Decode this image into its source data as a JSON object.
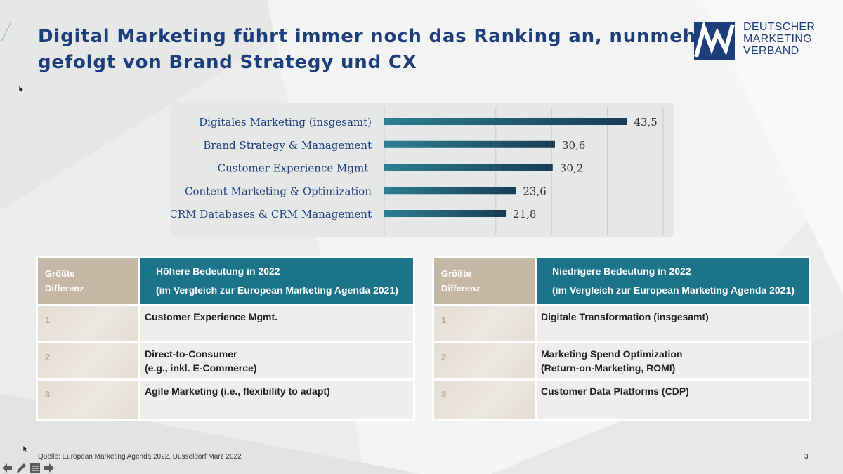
{
  "slide": {
    "title_line1": "Digital Marketing führt immer noch das Ranking an, nunmehr",
    "title_line2": "gefolgt von Brand Strategy und CX",
    "logo": {
      "line1": "DEUTSCHER",
      "line2": "MARKETING",
      "line3": "VERBAND",
      "color": "#1c3f7c"
    },
    "footer": "Quelle: European Marketing Agenda 2022, Düsseldorf März 2022",
    "page_number": "3"
  },
  "chart_data": {
    "type": "bar",
    "orientation": "horizontal",
    "categories": [
      "Digitales Marketing (insgesamt)",
      "Brand Strategy & Management",
      "Customer Experience Mgmt.",
      "Content Marketing & Optimization",
      "CRM Databases & CRM Management"
    ],
    "values": [
      43.5,
      30.6,
      30.2,
      23.6,
      21.8
    ],
    "value_labels": [
      "43,5",
      "30,6",
      "30,2",
      "23,6",
      "21,8"
    ],
    "xlim": [
      0,
      50
    ],
    "grid": true,
    "bar_color_start": "#2c7f93",
    "bar_color_end": "#173d55"
  },
  "table_left": {
    "header_a": "Größte Differenz",
    "header_b_line1": "Höhere Bedeutung in 2022",
    "header_b_line2": "(im Vergleich zur European Marketing Agenda 2021)",
    "rows": [
      {
        "num": "1",
        "line1": "Customer Experience Mgmt.",
        "line2": ""
      },
      {
        "num": "2",
        "line1": "Direct-to-Consumer",
        "line2": "(e.g., inkl. E-Commerce)"
      },
      {
        "num": "3",
        "line1": "Agile Marketing (i.e., flexibility to adapt)",
        "line2": ""
      }
    ]
  },
  "table_right": {
    "header_a": "Größte Differenz",
    "header_b_line1": "Niedrigere Bedeutung in 2022",
    "header_b_line2": "(im Vergleich zur European Marketing Agenda 2021)",
    "rows": [
      {
        "num": "1",
        "line1": "Digitale Transformation (insgesamt)",
        "line2": ""
      },
      {
        "num": "2",
        "line1": "Marketing Spend Optimization",
        "line2": "(Return-on-Marketing, ROMI)"
      },
      {
        "num": "3",
        "line1": "Customer Data Platforms (CDP)",
        "line2": ""
      }
    ]
  },
  "viewer_controls": {
    "icons": [
      "arrow-left-icon",
      "pen-icon",
      "menu-icon",
      "arrow-right-icon"
    ]
  }
}
